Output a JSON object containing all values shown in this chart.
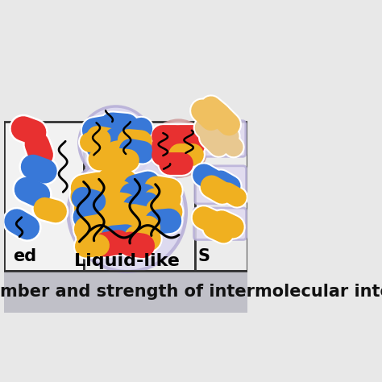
{
  "bg_color_top": "#e8e8e8",
  "bg_color_bottom": "#d0d0d4",
  "panel_left_bg": "#f0f0f0",
  "panel_mid_bg": "#e8e8e8",
  "panel_right_bg": "#e8e8e8",
  "border_color": "#333333",
  "circle_fill": "#dbd8f0",
  "circle_edge": "#b8b0d8",
  "circle2_fill": "#f0d0d0",
  "circle2_edge": "#d0a0a0",
  "red": "#e83030",
  "blue": "#3878d8",
  "yellow": "#f0b020",
  "tan_bright": "#f0c060",
  "tan_pale": "#e8c890",
  "tan_very_pale": "#f0d8a8",
  "black": "#111111",
  "white": "#ffffff",
  "label_liquid": "Liquid-like",
  "label_solid": "S",
  "label_dispersed": "ed",
  "bottom_text": "mber and strength of intermolecular interacti",
  "bottom_bg": "#c0c0c8",
  "bottom_text_color": "#111111"
}
